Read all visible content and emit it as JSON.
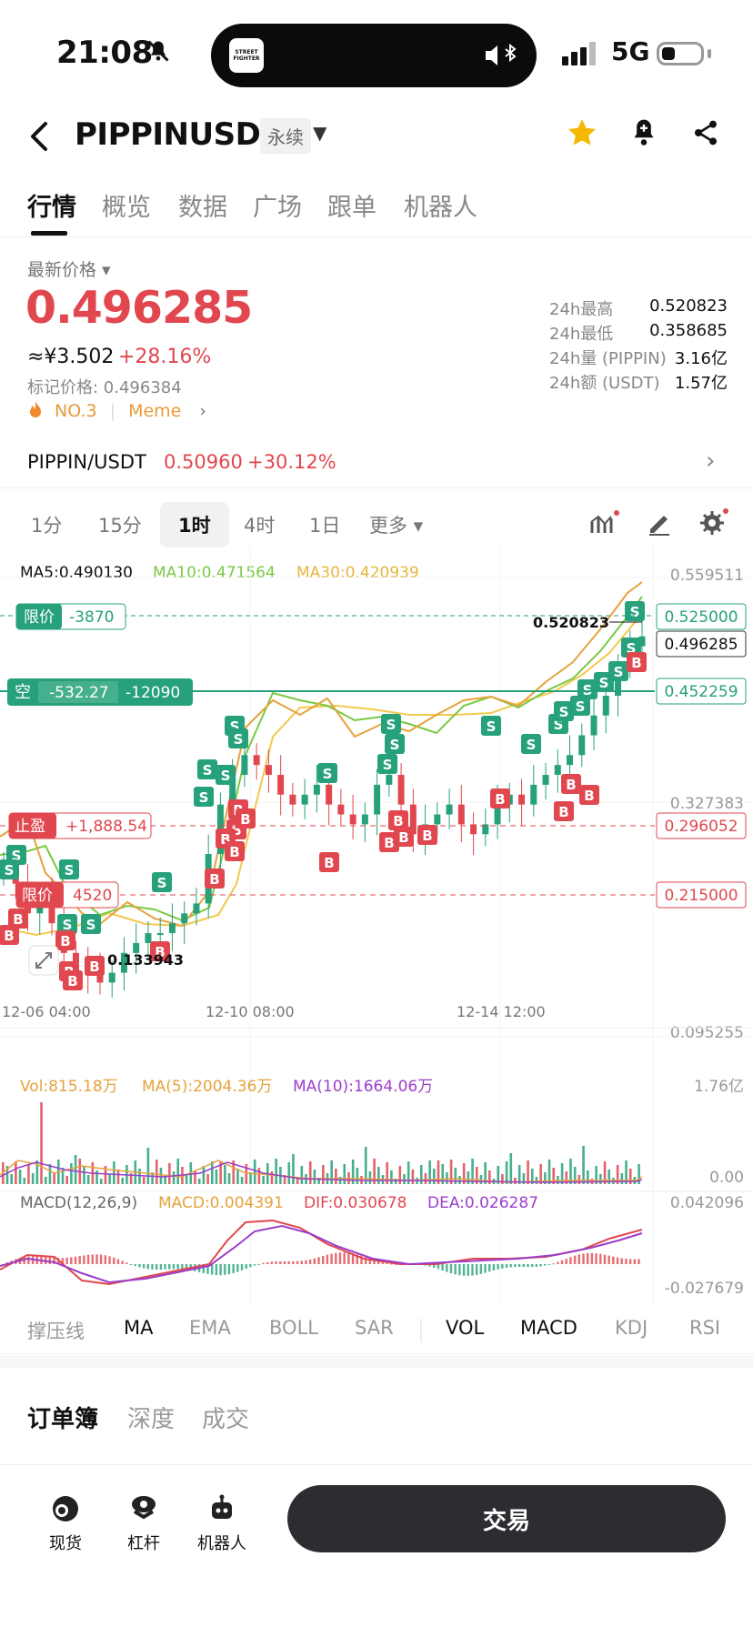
{
  "status_bar": {
    "time": "21:08",
    "island_logo": "STREET FIGHTER",
    "network": "5G"
  },
  "header": {
    "title": "PIPPINUSDT",
    "badge": "永续"
  },
  "tabs": [
    "行情",
    "概览",
    "数据",
    "广场",
    "跟单",
    "机器人"
  ],
  "price": {
    "label": "最新价格",
    "last": "0.496285",
    "cny": "≈¥3.502",
    "change": "+28.16%",
    "mark": "标记价格: 0.496384",
    "rank": "NO.3",
    "tag": "Meme"
  },
  "stats": [
    {
      "k": "24h最高",
      "v": "0.520823"
    },
    {
      "k": "24h最低",
      "v": "0.358685"
    },
    {
      "k": "24h量 (PIPPIN)",
      "v": "3.16亿"
    },
    {
      "k": "24h额 (USDT)",
      "v": "1.57亿"
    }
  ],
  "spot": {
    "pair": "PIPPIN/USDT",
    "price": "0.50960",
    "change": "+30.12%"
  },
  "timeframes": [
    "1分",
    "15分",
    "1时",
    "4时",
    "1日",
    "更多"
  ],
  "ma_legend": {
    "ma5": "MA5:0.490130",
    "ma10": "MA10:0.471564",
    "ma30": "MA30:0.420939"
  },
  "orders": {
    "limit1": {
      "label": "限价",
      "value": "-3870",
      "price": "0.525000"
    },
    "short": {
      "label": "空",
      "pnl": "-532.27",
      "size": "-12090",
      "price": "0.452259"
    },
    "tp": {
      "label": "止盈",
      "value": "+1,888.54",
      "price": "0.296052"
    },
    "limit2": {
      "label": "限价",
      "value": "4520",
      "price": "0.215000"
    }
  },
  "chart_data": {
    "type": "candlestick",
    "y_axis_labels": [
      "0.559511",
      "0.327383",
      "0.095255"
    ],
    "current_price": "0.496285",
    "high_marker": "0.520823",
    "low_marker": "0.133943",
    "x_labels": [
      "12-06 04:00",
      "12-10 08:00",
      "12-14 12:00"
    ],
    "close_series": [
      0.27,
      0.25,
      0.22,
      0.24,
      0.21,
      0.18,
      0.17,
      0.16,
      0.15,
      0.16,
      0.18,
      0.19,
      0.2,
      0.2,
      0.21,
      0.22,
      0.23,
      0.28,
      0.33,
      0.36,
      0.38,
      0.37,
      0.36,
      0.34,
      0.33,
      0.34,
      0.35,
      0.33,
      0.32,
      0.31,
      0.32,
      0.35,
      0.36,
      0.33,
      0.3,
      0.31,
      0.32,
      0.33,
      0.31,
      0.3,
      0.31,
      0.33,
      0.34,
      0.33,
      0.35,
      0.36,
      0.37,
      0.38,
      0.4,
      0.42,
      0.44,
      0.47,
      0.49,
      0.5
    ]
  },
  "volume": {
    "vol": "Vol:815.18万",
    "ma5": "MA(5):2004.36万",
    "ma10": "MA(10):1664.06万",
    "max": "1.76亿",
    "min": "0.00"
  },
  "macd": {
    "title": "MACD(12,26,9)",
    "macd": "MACD:0.004391",
    "dif": "DIF:0.030678",
    "dea": "DEA:0.026287",
    "max": "0.042096",
    "min": "-0.027679"
  },
  "indicators": [
    "撑压线",
    "MA",
    "EMA",
    "BOLL",
    "SAR",
    "VOL",
    "MACD",
    "KDJ",
    "RSI"
  ],
  "book_tabs": [
    "订单簿",
    "深度",
    "成交"
  ],
  "bottom_nav": [
    "现货",
    "杠杆",
    "机器人"
  ],
  "trade_label": "交易",
  "colors": {
    "up": "#26a17b",
    "down": "#e0474f",
    "ma5": "#e6a23c",
    "ma10": "#7ac943",
    "ma30": "#f2c94c"
  }
}
